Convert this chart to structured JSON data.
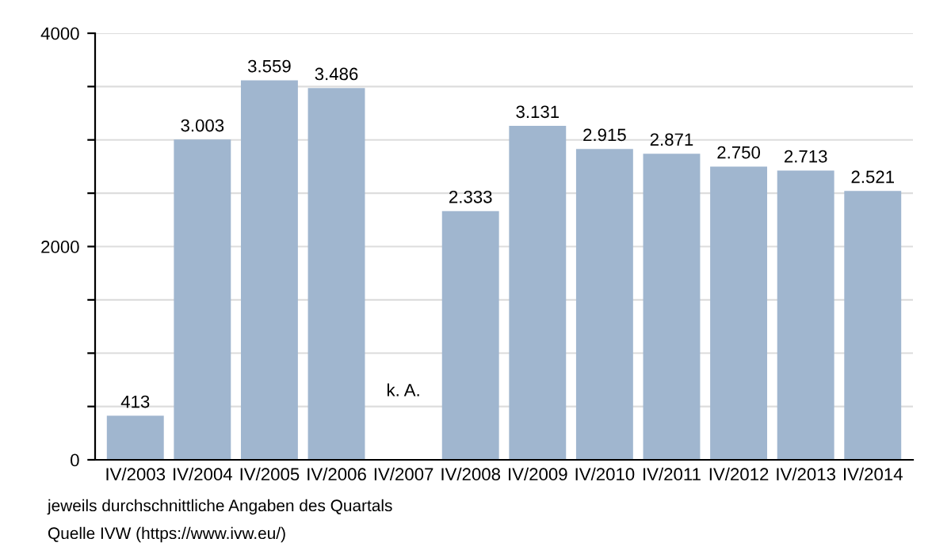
{
  "chart_data": {
    "type": "bar",
    "categories": [
      "IV/2003",
      "IV/2004",
      "IV/2005",
      "IV/2006",
      "IV/2007",
      "IV/2008",
      "IV/2009",
      "IV/2010",
      "IV/2011",
      "IV/2012",
      "IV/2013",
      "IV/2014"
    ],
    "values": [
      413,
      3003,
      3559,
      3486,
      null,
      2333,
      3131,
      2915,
      2871,
      2750,
      2713,
      2521
    ],
    "value_labels": [
      "413",
      "3.003",
      "3.559",
      "3.486",
      "k. A.",
      "2.333",
      "3.131",
      "2.915",
      "2.871",
      "2.750",
      "2.713",
      "2.521"
    ],
    "color": "#a0b6cf",
    "ylim": [
      0,
      4000
    ],
    "yticks": [
      0,
      {
        "value": 500,
        "label": null
      },
      {
        "value": 1000,
        "label": null
      },
      {
        "value": 1500,
        "label": null
      },
      2000,
      {
        "value": 2500,
        "label": null
      },
      {
        "value": 3000,
        "label": null
      },
      {
        "value": 3500,
        "label": null
      },
      4000
    ],
    "grid": "y",
    "annotations": [
      "jeweils durchschnittliche Angaben des Quartals",
      "Quelle IVW (https://www.ivw.eu/)"
    ]
  }
}
